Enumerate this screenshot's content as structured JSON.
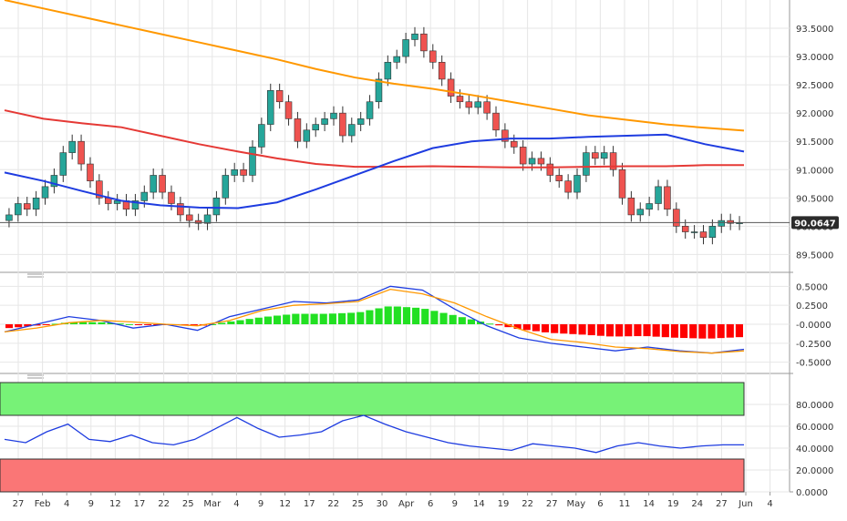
{
  "chart_data": [
    {
      "type": "candlestick",
      "panel": "price",
      "ylim": [
        89.2,
        94.0
      ],
      "y_ticks": [
        "89.5000",
        "90.0000",
        "90.5000",
        "91.0000",
        "91.5000",
        "92.0000",
        "92.5000",
        "93.0000",
        "93.5000"
      ],
      "last_price_label": "90.0647",
      "last_price": 90.0647,
      "colors": {
        "up": "#26a69a",
        "down": "#ef5350",
        "sma_orange": "#ff9800",
        "sma_red": "#e53935",
        "sma_blue": "#1e3ce0"
      },
      "series": [
        {
          "name": "",
          "color": "#ff9800",
          "values": [
            94.0,
            93.85,
            93.7,
            93.55,
            93.4,
            93.25,
            93.1,
            92.95,
            92.78,
            92.63,
            92.52,
            92.43,
            92.32,
            92.2,
            92.08,
            91.96,
            91.88,
            91.8,
            91.74,
            91.69
          ]
        },
        {
          "name": "",
          "color": "#e53935",
          "values": [
            92.05,
            91.9,
            91.82,
            91.75,
            91.6,
            91.45,
            91.32,
            91.2,
            91.1,
            91.05,
            91.05,
            91.06,
            91.05,
            91.04,
            91.04,
            91.05,
            91.06,
            91.06,
            91.08,
            91.08
          ]
        },
        {
          "name": "",
          "color": "#1e3ce0",
          "values": [
            90.95,
            90.8,
            90.62,
            90.45,
            90.37,
            90.33,
            90.32,
            90.42,
            90.65,
            90.9,
            91.15,
            91.38,
            91.5,
            91.55,
            91.55,
            91.58,
            91.6,
            91.62,
            91.45,
            91.32
          ]
        }
      ]
    },
    {
      "type": "macd",
      "panel": "macd",
      "ylim": [
        -0.6,
        0.6
      ],
      "y_ticks": [
        "0.5000",
        "0.2500",
        "-0.0000",
        "-0.2500",
        "-0.5000"
      ],
      "colors": {
        "hist_pos": "#22e022",
        "hist_neg": "#ff0000",
        "macd": "#1e3ce0",
        "signal": "#ff9800"
      },
      "macd": [
        -0.1,
        0.0,
        0.1,
        0.05,
        -0.05,
        0.0,
        -0.08,
        0.1,
        0.2,
        0.3,
        0.28,
        0.32,
        0.5,
        0.45,
        0.2,
        -0.02,
        -0.18,
        -0.25,
        -0.3,
        -0.35,
        -0.3,
        -0.35,
        -0.38,
        -0.33
      ],
      "signal": [
        -0.1,
        -0.05,
        0.02,
        0.05,
        0.03,
        0.0,
        -0.02,
        0.05,
        0.18,
        0.25,
        0.27,
        0.3,
        0.46,
        0.4,
        0.28,
        0.1,
        -0.06,
        -0.2,
        -0.24,
        -0.3,
        -0.32,
        -0.36,
        -0.38,
        -0.35
      ]
    },
    {
      "type": "rsi",
      "panel": "rsi",
      "ylim": [
        0,
        100
      ],
      "y_ticks": [
        "0.0000",
        "20.0000",
        "40.0000",
        "60.0000",
        "80.0000"
      ],
      "overbought_zone": [
        70,
        100
      ],
      "oversold_zone": [
        0,
        30
      ],
      "colors": {
        "overbought": "#77f277",
        "oversold": "#fa7676",
        "line": "#1e3ce0"
      },
      "values": [
        48,
        45,
        55,
        62,
        48,
        46,
        52,
        45,
        43,
        48,
        58,
        68,
        58,
        50,
        52,
        55,
        65,
        70,
        62,
        55,
        50,
        45,
        42,
        40,
        38,
        44,
        42,
        40,
        36,
        42,
        45,
        42,
        40,
        42,
        43,
        43
      ]
    }
  ],
  "x_axis": {
    "labels": [
      "27",
      "Feb",
      "4",
      "9",
      "12",
      "17",
      "22",
      "25",
      "Mar",
      "4",
      "9",
      "12",
      "17",
      "22",
      "25",
      "30",
      "Apr",
      "6",
      "9",
      "14",
      "19",
      "22",
      "27",
      "May",
      "6",
      "11",
      "14",
      "19",
      "24",
      "27",
      "Jun",
      "4"
    ]
  }
}
